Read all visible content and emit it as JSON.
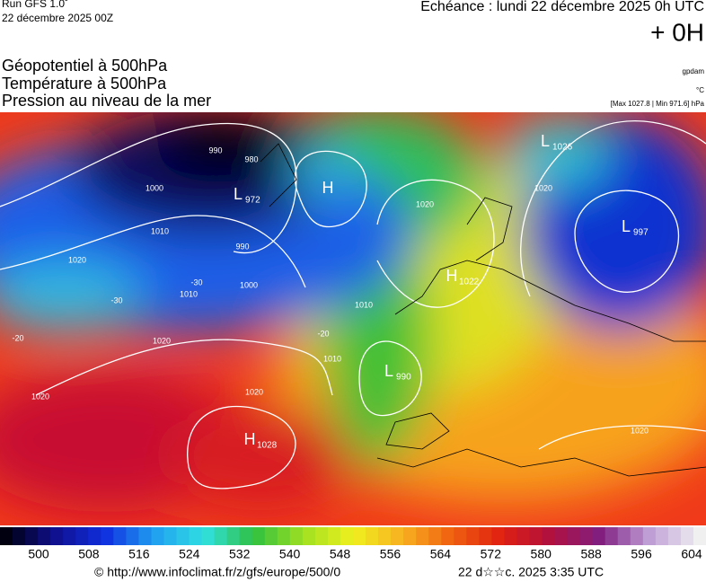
{
  "header": {
    "run": "Run GFS 1.0˚",
    "run_date": "22 décembre 2025 00Z",
    "forecast": "Echéance : lundi 22 décembre 2025 0h UTC",
    "lead": "+ 0H",
    "fields": [
      "Géopotentiel à 500hPa",
      "Température à 500hPa",
      "Pression au niveau de la mer"
    ],
    "units": [
      "gpdam",
      "°C",
      "[Max 1027.8 | Min 971.6] hPa"
    ]
  },
  "map": {
    "centers": [
      {
        "letter": "L",
        "value": "972"
      },
      {
        "letter": "H",
        "value": ""
      },
      {
        "letter": "L",
        "value": "1026"
      },
      {
        "letter": "L",
        "value": "997"
      },
      {
        "letter": "H",
        "value": "1022"
      },
      {
        "letter": "L",
        "value": "990"
      },
      {
        "letter": "H",
        "value": "1028"
      }
    ],
    "isobar_labels": [
      "990",
      "980",
      "1000",
      "1010",
      "1020",
      "990",
      "1000",
      "1010",
      "1020",
      "1020",
      "1020",
      "1020",
      "1020",
      "1010",
      "1010",
      "1020",
      "-30",
      "-20",
      "-20",
      "-30"
    ]
  },
  "colorbar": {
    "labels": [
      500,
      508,
      516,
      524,
      532,
      540,
      548,
      556,
      564,
      572,
      580,
      588,
      596,
      604
    ]
  },
  "footer": {
    "source": "© http://www.infoclimat.fr/z/gfs/europe/500/0",
    "generated": "22 d☆☆c. 2025  3:35 UTC"
  }
}
